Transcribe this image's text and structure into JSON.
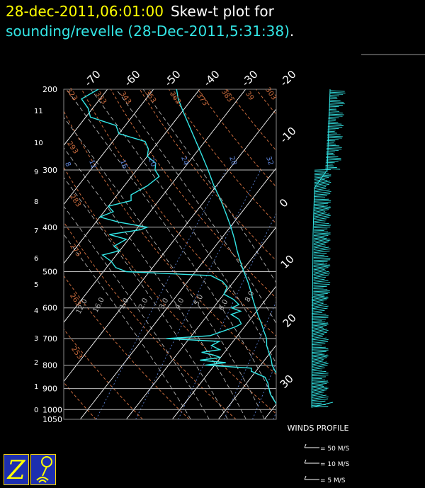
{
  "header": {
    "date_time": "28-dec-2011,06:01:00",
    "plot_label": "Skew-t plot for",
    "source": "sounding/revelle (28-Dec-2011,5:31:38)",
    "period": "."
  },
  "colors": {
    "background": "#000000",
    "trace": "#33e6e6",
    "date": "#ffff00",
    "isobar": "#bbbbbb",
    "dry_adiabat": "#c86a3c",
    "mixing_ratio": "#5a7fd0",
    "moist_adiabat": "#b0b0b0"
  },
  "chart_data": {
    "type": "line",
    "pressure_levels": [
      200,
      300,
      400,
      500,
      600,
      700,
      800,
      900,
      1000,
      1050
    ],
    "height_km_labels": [
      "11",
      "10",
      "9",
      "8",
      "7",
      "6",
      "5",
      "4",
      "3",
      "2",
      "1",
      "0"
    ],
    "height_km_values": [
      11,
      10,
      9,
      8,
      7,
      6,
      5,
      4,
      3,
      2,
      1,
      0
    ],
    "temperature_ticks_top": [
      "-70",
      "-60",
      "-50",
      "-40",
      "-30",
      "-20"
    ],
    "temperature_ticks_right": [
      "-10",
      "0",
      "10",
      "20",
      "30"
    ],
    "dry_adiabat_labels": [
      "323",
      "333",
      "343",
      "353",
      "363",
      "373",
      "383",
      "39",
      "303",
      "293",
      "283",
      "273",
      "263",
      "253"
    ],
    "mixing_ratio_labels": [
      "8",
      "12",
      "16",
      "20",
      "24",
      "28",
      "32"
    ],
    "moist_adiabat_labels": [
      "1.0",
      "2.0",
      "3.0",
      "4.0",
      "5.0",
      "6.0",
      "8.0",
      "12.0",
      "16.0"
    ],
    "temperature_profile": [
      [
        1010,
        27.0
      ],
      [
        1000,
        25.8
      ],
      [
        980,
        24.0
      ],
      [
        950,
        22.2
      ],
      [
        925,
        20.5
      ],
      [
        900,
        19.0
      ],
      [
        875,
        17.6
      ],
      [
        850,
        16.0
      ],
      [
        825,
        14.2
      ],
      [
        800,
        12.5
      ],
      [
        775,
        11.2
      ],
      [
        750,
        9.6
      ],
      [
        725,
        8.0
      ],
      [
        700,
        6.8
      ],
      [
        675,
        5.0
      ],
      [
        650,
        3.2
      ],
      [
        625,
        1.2
      ],
      [
        600,
        -0.8
      ],
      [
        575,
        -2.8
      ],
      [
        550,
        -4.8
      ],
      [
        525,
        -7.0
      ],
      [
        500,
        -9.5
      ],
      [
        475,
        -12.0
      ],
      [
        450,
        -14.5
      ],
      [
        425,
        -17.0
      ],
      [
        400,
        -19.8
      ],
      [
        375,
        -23.0
      ],
      [
        350,
        -26.5
      ],
      [
        325,
        -30.5
      ],
      [
        300,
        -34.5
      ],
      [
        275,
        -39.0
      ],
      [
        250,
        -44.0
      ],
      [
        225,
        -49.5
      ],
      [
        210,
        -53.0
      ],
      [
        200,
        -55.0
      ]
    ],
    "dewpoint_profile": [
      [
        1000,
        21.0
      ],
      [
        975,
        20.2
      ],
      [
        950,
        18.6
      ],
      [
        925,
        17.0
      ],
      [
        900,
        15.8
      ],
      [
        875,
        14.6
      ],
      [
        850,
        13.0
      ],
      [
        825,
        9.0
      ],
      [
        812,
        8.5
      ],
      [
        800,
        -2.0
      ],
      [
        790,
        2.0
      ],
      [
        780,
        -4.0
      ],
      [
        770,
        0.0
      ],
      [
        760,
        -2.0
      ],
      [
        750,
        -5.0
      ],
      [
        740,
        -1.5
      ],
      [
        725,
        -4.0
      ],
      [
        710,
        -3.0
      ],
      [
        700,
        -15.0
      ],
      [
        690,
        -6.0
      ],
      [
        675,
        -4.0
      ],
      [
        660,
        -2.0
      ],
      [
        650,
        -1.2
      ],
      [
        635,
        -2.5
      ],
      [
        620,
        -5.0
      ],
      [
        610,
        -3.5
      ],
      [
        600,
        -6.0
      ],
      [
        590,
        -5.0
      ],
      [
        575,
        -7.0
      ],
      [
        560,
        -10.0
      ],
      [
        540,
        -10.5
      ],
      [
        525,
        -12.5
      ],
      [
        510,
        -16.0
      ],
      [
        500,
        -35.0
      ],
      [
        490,
        -38.0
      ],
      [
        475,
        -40.0
      ],
      [
        460,
        -43.0
      ],
      [
        450,
        -40.0
      ],
      [
        440,
        -42.0
      ],
      [
        425,
        -40.5
      ],
      [
        415,
        -45.0
      ],
      [
        405,
        -39.0
      ],
      [
        400,
        -38.0
      ],
      [
        390,
        -45.0
      ],
      [
        380,
        -50.0
      ],
      [
        370,
        -48.0
      ],
      [
        360,
        -50.0
      ],
      [
        350,
        -46.0
      ],
      [
        340,
        -47.0
      ],
      [
        325,
        -45.0
      ],
      [
        310,
        -44.0
      ],
      [
        300,
        -46.0
      ],
      [
        290,
        -47.0
      ],
      [
        280,
        -50.0
      ],
      [
        270,
        -51.0
      ],
      [
        260,
        -53.0
      ],
      [
        250,
        -60.0
      ],
      [
        240,
        -62.0
      ],
      [
        230,
        -69.0
      ],
      [
        220,
        -71.0
      ],
      [
        210,
        -74.0
      ],
      [
        200,
        -72.0
      ]
    ]
  },
  "winds_profile": {
    "title": "WINDS PROFILE",
    "legend": [
      "= 50 M/S",
      "= 10 M/S",
      "= 5 M/S"
    ]
  },
  "footer_icons": [
    "zebra-logo-icon",
    "antenna-balloon-icon"
  ]
}
